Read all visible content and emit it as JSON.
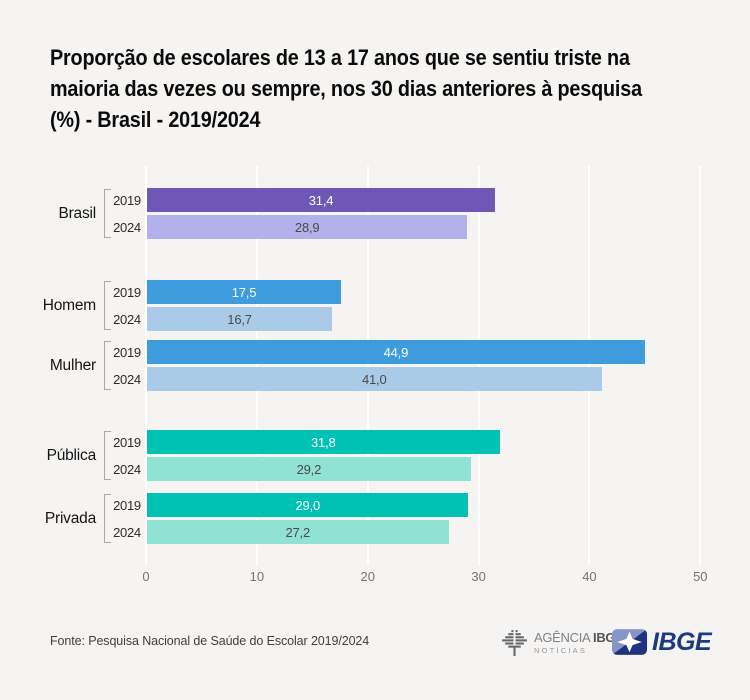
{
  "title": "Proporção de escolares de 13 a 17 anos que se sentiu triste na\nmaioria das vezes ou sempre, nos 30 dias anteriores à pesquisa\n(%) - Brasil - 2019/2024",
  "source": "Fonte: Pesquisa Nacional de Saúde do Escolar 2019/2024",
  "logos": {
    "agencia": {
      "icon": "tree-icon",
      "name_regular": "AGÊNCIA",
      "name_bold": "IBGE",
      "subtitle": "NOTÍCIAS",
      "text_color": "#545557"
    },
    "ibge": {
      "icon": "ibge-star-icon",
      "text": "IBGE",
      "text_color": "#1B3A80",
      "icon_light_color": "#8595C7",
      "icon_dark_color": "#1E3380"
    }
  },
  "chart_data": {
    "type": "bar",
    "orientation": "horizontal",
    "unit": "%",
    "title": "Proporção de escolares de 13 a 17 anos que se sentiu triste na maioria das vezes ou sempre, nos 30 dias anteriores à pesquisa (%) - Brasil - 2019/2024",
    "xlabel": "",
    "ylabel": "",
    "xlim": [
      0,
      50
    ],
    "x_ticks": [
      0,
      10,
      20,
      30,
      40,
      50
    ],
    "grid": true,
    "gridline_color": "#FFFFFF",
    "background_color": "#F5F4F2",
    "series_years": [
      "2019",
      "2024"
    ],
    "value_label_colors": [
      "#FFFFFF",
      "#4A4A4A"
    ],
    "groups": [
      {
        "label": "Brasil",
        "colors": [
          "#6F58B5",
          "#B3B1EC"
        ],
        "bars": [
          {
            "year": "2019",
            "value": 31.4,
            "display": "31,4"
          },
          {
            "year": "2024",
            "value": 28.9,
            "display": "28,9"
          }
        ]
      },
      {
        "label": "Homem",
        "colors": [
          "#3E9BDC",
          "#A9CBE8"
        ],
        "bars": [
          {
            "year": "2019",
            "value": 17.5,
            "display": "17,5"
          },
          {
            "year": "2024",
            "value": 16.7,
            "display": "16,7"
          }
        ]
      },
      {
        "label": "Mulher",
        "colors": [
          "#3E9BDC",
          "#A9CBE8"
        ],
        "bars": [
          {
            "year": "2019",
            "value": 44.9,
            "display": "44,9"
          },
          {
            "year": "2024",
            "value": 41.0,
            "display": "41,0"
          }
        ]
      },
      {
        "label": "Pública",
        "colors": [
          "#00C2B3",
          "#90E2D3"
        ],
        "bars": [
          {
            "year": "2019",
            "value": 31.8,
            "display": "31,8"
          },
          {
            "year": "2024",
            "value": 29.2,
            "display": "29,2"
          }
        ]
      },
      {
        "label": "Privada",
        "colors": [
          "#00C2B3",
          "#90E2D3"
        ],
        "bars": [
          {
            "year": "2019",
            "value": 29.0,
            "display": "29,0"
          },
          {
            "year": "2024",
            "value": 27.2,
            "display": "27,2"
          }
        ]
      }
    ]
  }
}
